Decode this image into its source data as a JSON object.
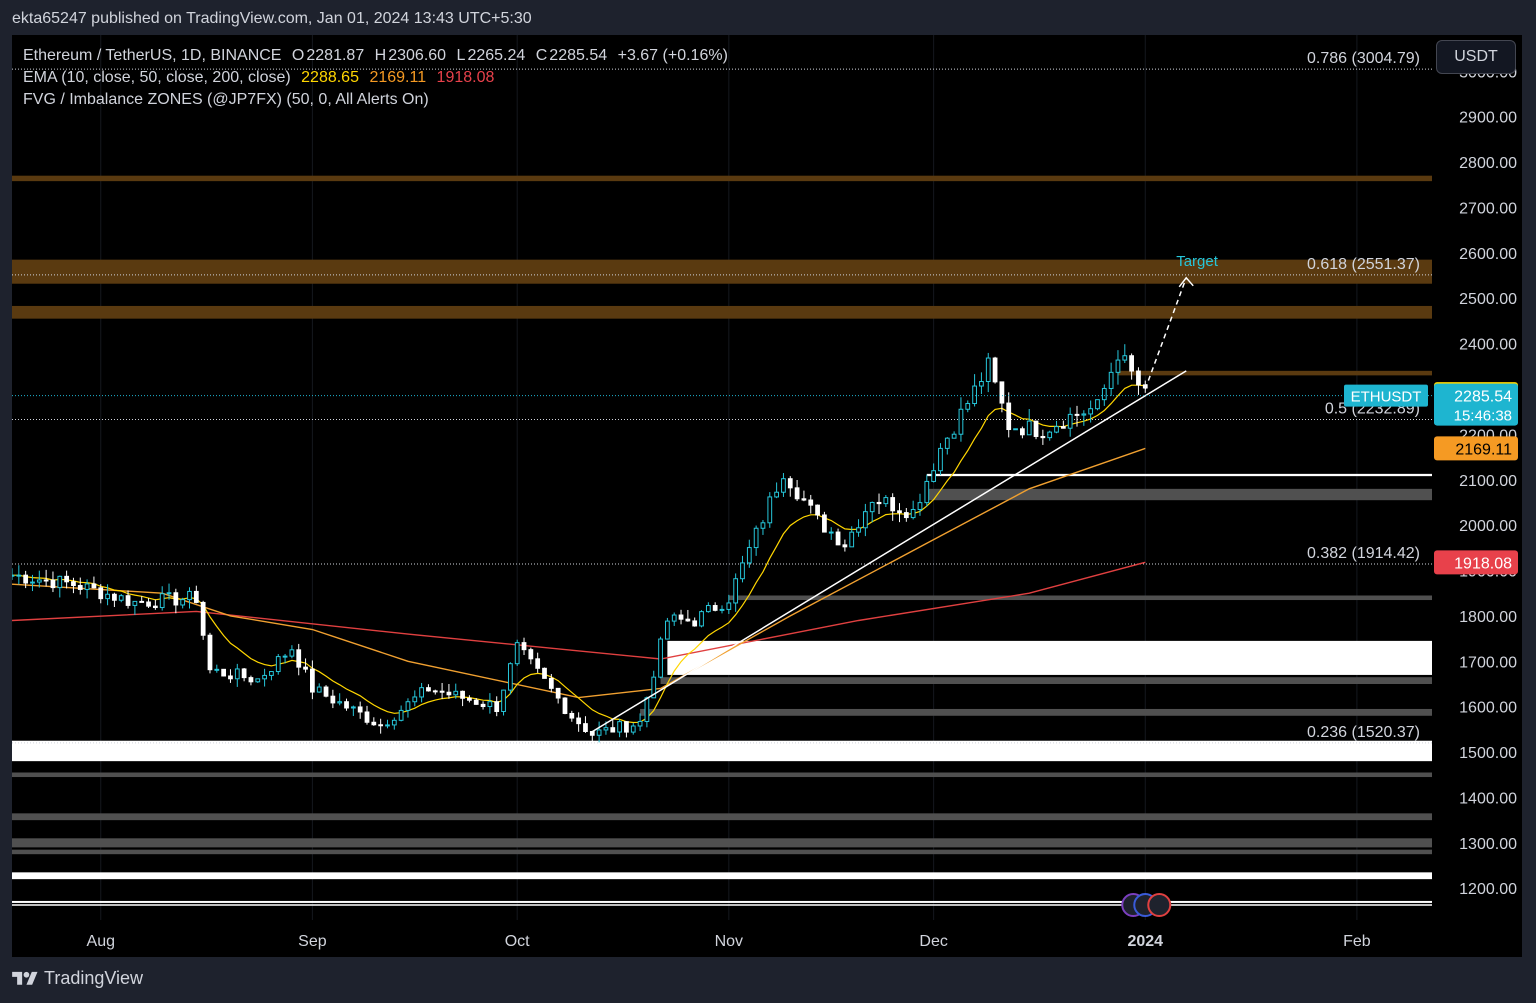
{
  "header": {
    "published_line": "ekta65247 published on TradingView.com, Jan 01, 2024 13:43 UTC+5:30"
  },
  "legend": {
    "symbol": "Ethereum / TetherUS, 1D, BINANCE",
    "open_label": "O",
    "open": "2281.87",
    "high_label": "H",
    "high": "2306.60",
    "low_label": "L",
    "low": "2265.24",
    "close_label": "C",
    "close": "2285.54",
    "change": "+3.67 (+0.16%)",
    "ema_title": "EMA (10, close, 50, close, 200, close)",
    "ema10": "2288.65",
    "ema50": "2169.11",
    "ema200": "1918.08",
    "fvg_title": "FVG / Imbalance ZONES (@JP7FX) (50, 0, All Alerts On)"
  },
  "currency_button": "USDT",
  "footer": {
    "brand": "TradingView"
  },
  "colors": {
    "up": "#26c6da",
    "down": "#ffffff",
    "ema10": "#ffd600",
    "ema50": "#f0a030",
    "ema200": "#e04040",
    "fvg_orange": "#5a3a10",
    "fvg_white": "#ffffff",
    "fvg_grey": "#505050",
    "last_price": "#1eb5d0"
  },
  "chart_data": {
    "type": "candlestick",
    "symbol": "ETHUSDT",
    "timeframe": "1D",
    "ylim": [
      1130,
      3080
    ],
    "y_ticks": [
      "3000.00",
      "2900.00",
      "2800.00",
      "2700.00",
      "2600.00",
      "2500.00",
      "2400.00",
      "2300.00",
      "2200.00",
      "2100.00",
      "2000.00",
      "1900.00",
      "1800.00",
      "1700.00",
      "1600.00",
      "1500.00",
      "1400.00",
      "1300.00",
      "1200.00"
    ],
    "x_ticks": [
      {
        "label": "Aug",
        "date": "2023-08-01",
        "bold": false
      },
      {
        "label": "Sep",
        "date": "2023-09-01",
        "bold": false
      },
      {
        "label": "Oct",
        "date": "2023-10-01",
        "bold": false
      },
      {
        "label": "Nov",
        "date": "2023-11-01",
        "bold": false
      },
      {
        "label": "Dec",
        "date": "2023-12-01",
        "bold": false
      },
      {
        "label": "2024",
        "date": "2024-01-01",
        "bold": true
      },
      {
        "label": "Feb",
        "date": "2024-02-01",
        "bold": false
      }
    ],
    "xlim": [
      "2023-07-19",
      "2024-02-12"
    ],
    "key_prices": [
      {
        "date": "2023-07-19",
        "price": 1890
      },
      {
        "date": "2023-07-28",
        "price": 1870
      },
      {
        "date": "2023-08-06",
        "price": 1830
      },
      {
        "date": "2023-08-15",
        "price": 1840
      },
      {
        "date": "2023-08-17",
        "price": 1680
      },
      {
        "date": "2023-08-24",
        "price": 1660
      },
      {
        "date": "2023-08-29",
        "price": 1730
      },
      {
        "date": "2023-09-01",
        "price": 1640
      },
      {
        "date": "2023-09-11",
        "price": 1560
      },
      {
        "date": "2023-09-18",
        "price": 1640
      },
      {
        "date": "2023-09-28",
        "price": 1600
      },
      {
        "date": "2023-10-01",
        "price": 1730
      },
      {
        "date": "2023-10-09",
        "price": 1580
      },
      {
        "date": "2023-10-12",
        "price": 1540
      },
      {
        "date": "2023-10-19",
        "price": 1565
      },
      {
        "date": "2023-10-23",
        "price": 1790
      },
      {
        "date": "2023-10-27",
        "price": 1790
      },
      {
        "date": "2023-11-01",
        "price": 1840
      },
      {
        "date": "2023-11-09",
        "price": 2120
      },
      {
        "date": "2023-11-14",
        "price": 2010
      },
      {
        "date": "2023-11-18",
        "price": 1960
      },
      {
        "date": "2023-11-22",
        "price": 2060
      },
      {
        "date": "2023-11-28",
        "price": 2030
      },
      {
        "date": "2023-12-02",
        "price": 2170
      },
      {
        "date": "2023-12-06",
        "price": 2270
      },
      {
        "date": "2023-12-09",
        "price": 2350
      },
      {
        "date": "2023-12-12",
        "price": 2220
      },
      {
        "date": "2023-12-17",
        "price": 2210
      },
      {
        "date": "2023-12-21",
        "price": 2240
      },
      {
        "date": "2023-12-25",
        "price": 2260
      },
      {
        "date": "2023-12-28",
        "price": 2380
      },
      {
        "date": "2024-01-01",
        "price": 2285.54
      }
    ],
    "series": [
      {
        "name": "EMA 10",
        "last": 2288.65
      },
      {
        "name": "EMA 50",
        "last": 2169.11
      },
      {
        "name": "EMA 200",
        "last": 1918.08
      }
    ],
    "ema200_path": [
      {
        "date": "2023-07-19",
        "price": 1790
      },
      {
        "date": "2023-08-15",
        "price": 1810
      },
      {
        "date": "2023-09-15",
        "price": 1760
      },
      {
        "date": "2023-10-22",
        "price": 1705
      },
      {
        "date": "2023-11-20",
        "price": 1790
      },
      {
        "date": "2023-12-15",
        "price": 1850
      },
      {
        "date": "2024-01-01",
        "price": 1918.08
      }
    ],
    "ema50_path": [
      {
        "date": "2023-07-19",
        "price": 1870
      },
      {
        "date": "2023-08-10",
        "price": 1850
      },
      {
        "date": "2023-08-20",
        "price": 1800
      },
      {
        "date": "2023-09-01",
        "price": 1770
      },
      {
        "date": "2023-09-15",
        "price": 1700
      },
      {
        "date": "2023-10-10",
        "price": 1620
      },
      {
        "date": "2023-10-22",
        "price": 1640
      },
      {
        "date": "2023-11-10",
        "price": 1800
      },
      {
        "date": "2023-11-30",
        "price": 1960
      },
      {
        "date": "2023-12-15",
        "price": 2080
      },
      {
        "date": "2024-01-01",
        "price": 2169.11
      }
    ],
    "fib_levels": [
      {
        "label": "0.786 (3004.79)",
        "price": 3004.79
      },
      {
        "label": "0.618 (2551.37)",
        "price": 2551.37
      },
      {
        "label": "0.5 (2232.89)",
        "price": 2232.89
      },
      {
        "label": "0.382 (1914.42)",
        "price": 1914.42
      },
      {
        "label": "0.236 (1520.37)",
        "price": 1520.37
      }
    ],
    "fvg_zones": [
      {
        "kind": "orange",
        "start": "2023-07-19",
        "top": 2770,
        "bottom": 2758
      },
      {
        "kind": "orange",
        "start": "2023-07-19",
        "top": 2585,
        "bottom": 2532
      },
      {
        "kind": "orange",
        "start": "2023-07-19",
        "top": 2483,
        "bottom": 2455
      },
      {
        "kind": "orange",
        "start": "2023-12-28",
        "top": 2340,
        "bottom": 2330
      },
      {
        "kind": "white_line",
        "start": "2023-11-30",
        "top": 2113,
        "bottom": 2108
      },
      {
        "kind": "grey",
        "start": "2023-11-30",
        "top": 2080,
        "bottom": 2055
      },
      {
        "kind": "grey",
        "start": "2023-11-01",
        "top": 1845,
        "bottom": 1835
      },
      {
        "kind": "white",
        "start": "2023-10-23",
        "top": 1745,
        "bottom": 1670
      },
      {
        "kind": "grey",
        "start": "2023-10-22",
        "top": 1665,
        "bottom": 1650
      },
      {
        "kind": "grey",
        "start": "2023-10-19",
        "top": 1595,
        "bottom": 1580
      },
      {
        "kind": "white",
        "start": "2023-07-19",
        "top": 1525,
        "bottom": 1480
      },
      {
        "kind": "grey",
        "start": "2023-07-19",
        "top": 1455,
        "bottom": 1445
      },
      {
        "kind": "grey",
        "start": "2023-07-19",
        "top": 1365,
        "bottom": 1350
      },
      {
        "kind": "grey",
        "start": "2023-07-19",
        "top": 1310,
        "bottom": 1290
      },
      {
        "kind": "grey",
        "start": "2023-07-19",
        "top": 1285,
        "bottom": 1275
      },
      {
        "kind": "white",
        "start": "2023-07-19",
        "top": 1235,
        "bottom": 1220
      },
      {
        "kind": "white_line",
        "start": "2023-07-19",
        "top": 1172,
        "bottom": 1168
      }
    ],
    "trendline": {
      "from": {
        "date": "2023-10-12",
        "price": 1545
      },
      "to": {
        "date": "2024-01-07",
        "price": 2340
      }
    },
    "target_arrow": {
      "from": {
        "date": "2024-01-01",
        "price": 2300
      },
      "to": {
        "date": "2024-01-07",
        "price": 2545
      },
      "label": "Target"
    },
    "price_labels": [
      {
        "text": "2288.65",
        "price": 2288.65,
        "bg": "#ffd600",
        "fg": "#000000"
      },
      {
        "text": "2169.11",
        "price": 2169.11,
        "bg": "#f59a23",
        "fg": "#000000"
      },
      {
        "text": "1918.08",
        "price": 1918.08,
        "bg": "#e8414b",
        "fg": "#ffffff"
      }
    ],
    "last_price": {
      "symbol": "ETHUSDT",
      "price": 2285.54,
      "text": "2285.54",
      "countdown": "15:46:38"
    },
    "event_markers_date": "2024-01-01"
  }
}
